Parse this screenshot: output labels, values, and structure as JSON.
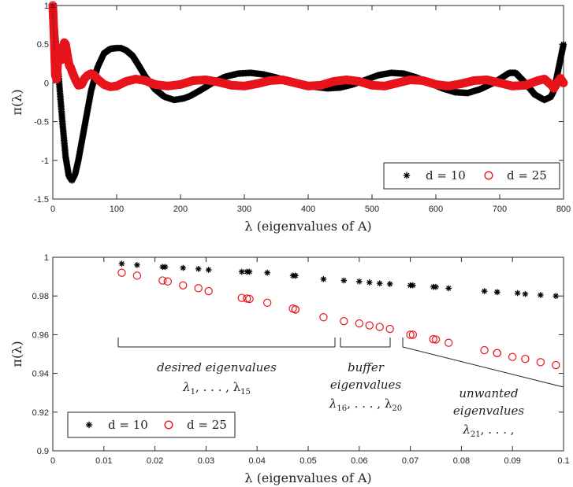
{
  "chart_data": [
    {
      "type": "line",
      "xlabel": "λ (eigenvalues of A)",
      "ylabel": "π(λ)",
      "xlim": [
        0,
        800
      ],
      "ylim": [
        -1.5,
        1
      ],
      "xticks": [
        "0",
        "100",
        "200",
        "300",
        "400",
        "500",
        "600",
        "700",
        "800"
      ],
      "yticks": [
        "-1.5",
        "-1",
        "-0.5",
        "0",
        "0.5",
        "1"
      ],
      "legend_position": "bottom-right",
      "series": [
        {
          "name": "d = 10",
          "marker": "asterisk",
          "color": "#000000",
          "x": [
            0,
            5,
            10,
            15,
            20,
            25,
            30,
            35,
            40,
            50,
            60,
            70,
            80,
            90,
            100,
            107,
            115,
            125,
            135,
            145,
            160,
            175,
            190,
            205,
            215,
            230,
            250,
            270,
            290,
            310,
            330,
            350,
            370,
            390,
            410,
            430,
            450,
            470,
            490,
            510,
            530,
            550,
            570,
            590,
            610,
            630,
            650,
            670,
            690,
            700,
            715,
            725,
            740,
            755,
            770,
            780,
            785,
            790,
            795,
            800
          ],
          "y": [
            1.0,
            0.5,
            0.0,
            -0.5,
            -0.95,
            -1.2,
            -1.26,
            -1.18,
            -1.0,
            -0.55,
            -0.1,
            0.2,
            0.38,
            0.44,
            0.45,
            0.45,
            0.42,
            0.35,
            0.22,
            0.08,
            -0.08,
            -0.18,
            -0.22,
            -0.2,
            -0.17,
            -0.1,
            0.0,
            0.08,
            0.12,
            0.13,
            0.11,
            0.07,
            0.02,
            -0.02,
            -0.05,
            -0.07,
            -0.06,
            -0.02,
            0.04,
            0.1,
            0.13,
            0.12,
            0.07,
            0.0,
            -0.07,
            -0.12,
            -0.13,
            -0.08,
            0.0,
            0.05,
            0.13,
            0.13,
            0.0,
            -0.15,
            -0.22,
            -0.18,
            -0.1,
            0.1,
            0.3,
            0.5
          ]
        },
        {
          "name": "d = 25",
          "marker": "circle",
          "color": "#e8141b",
          "x": [
            0,
            2,
            4,
            6,
            8,
            10,
            12,
            14,
            16,
            18,
            20,
            22,
            24,
            26,
            28,
            30,
            35,
            40,
            45,
            50,
            55,
            60,
            65,
            70,
            80,
            90,
            100,
            115,
            130,
            145,
            160,
            180,
            200,
            220,
            240,
            260,
            280,
            300,
            320,
            340,
            360,
            380,
            400,
            420,
            440,
            460,
            480,
            500,
            520,
            540,
            560,
            580,
            600,
            620,
            640,
            660,
            680,
            700,
            720,
            740,
            760,
            770,
            780,
            785,
            790,
            795,
            800
          ],
          "y": [
            1.0,
            0.6,
            0.1,
            0.05,
            0.3,
            0.45,
            0.4,
            0.3,
            0.45,
            0.52,
            0.5,
            0.4,
            0.3,
            0.22,
            0.2,
            0.15,
            0.05,
            -0.03,
            -0.02,
            0.06,
            0.1,
            0.12,
            0.1,
            0.05,
            -0.02,
            -0.05,
            -0.04,
            0.02,
            0.05,
            0.03,
            -0.02,
            -0.04,
            -0.02,
            0.03,
            0.04,
            0.01,
            -0.03,
            -0.04,
            -0.01,
            0.03,
            0.04,
            0.0,
            -0.04,
            -0.03,
            0.02,
            0.04,
            0.02,
            -0.03,
            -0.04,
            0.0,
            0.04,
            0.03,
            -0.02,
            -0.04,
            -0.01,
            0.03,
            0.04,
            0.0,
            -0.04,
            -0.03,
            0.03,
            0.05,
            -0.02,
            -0.07,
            0.0,
            0.06,
            0.0
          ]
        }
      ]
    },
    {
      "type": "scatter",
      "xlabel": "λ (eigenvalues of A)",
      "ylabel": "π(λ)",
      "xlim": [
        0,
        0.1
      ],
      "ylim": [
        0.9,
        1
      ],
      "xticks": [
        "0",
        "0.01",
        "0.02",
        "0.03",
        "0.04",
        "0.05",
        "0.06",
        "0.07",
        "0.08",
        "0.09",
        "0.1"
      ],
      "yticks": [
        "0.9",
        "0.92",
        "0.94",
        "0.96",
        "0.98",
        "1"
      ],
      "legend_position": "bottom-left",
      "series": [
        {
          "name": "d = 10",
          "marker": "asterisk",
          "color": "#000000",
          "x": [
            0.0135,
            0.0165,
            0.0215,
            0.022,
            0.0255,
            0.0285,
            0.0305,
            0.037,
            0.038,
            0.0385,
            0.042,
            0.047,
            0.0475,
            0.0475,
            0.053,
            0.057,
            0.06,
            0.062,
            0.064,
            0.066,
            0.07,
            0.0705,
            0.0745,
            0.075,
            0.0775,
            0.0845,
            0.087,
            0.087,
            0.091,
            0.0925,
            0.0955,
            0.0985
          ],
          "y": [
            0.9967,
            0.996,
            0.995,
            0.995,
            0.9945,
            0.994,
            0.9935,
            0.9925,
            0.9925,
            0.9925,
            0.992,
            0.9905,
            0.9905,
            0.9905,
            0.9887,
            0.988,
            0.9875,
            0.987,
            0.9865,
            0.9862,
            0.9855,
            0.9855,
            0.9847,
            0.9847,
            0.984,
            0.9825,
            0.982,
            0.982,
            0.9815,
            0.981,
            0.9805,
            0.98
          ]
        },
        {
          "name": "d = 25",
          "marker": "circle",
          "color": "#e8141b",
          "x": [
            0.0135,
            0.0165,
            0.0215,
            0.0225,
            0.0255,
            0.0285,
            0.0305,
            0.037,
            0.038,
            0.0385,
            0.042,
            0.047,
            0.0475,
            0.0475,
            0.053,
            0.057,
            0.06,
            0.062,
            0.064,
            0.066,
            0.07,
            0.0705,
            0.0745,
            0.075,
            0.0775,
            0.0845,
            0.087,
            0.087,
            0.09,
            0.0925,
            0.0955,
            0.0985
          ],
          "y": [
            0.992,
            0.9905,
            0.988,
            0.9875,
            0.9855,
            0.984,
            0.9825,
            0.979,
            0.9787,
            0.9785,
            0.9765,
            0.9735,
            0.973,
            0.973,
            0.969,
            0.967,
            0.9658,
            0.9648,
            0.964,
            0.963,
            0.96,
            0.96,
            0.9577,
            0.9575,
            0.9558,
            0.952,
            0.9505,
            0.9505,
            0.9485,
            0.9475,
            0.9458,
            0.9443
          ]
        }
      ],
      "annotations": {
        "desired": {
          "line1": "desired eigenvalues",
          "line2": "λ",
          "sub1": "1",
          "mid": ", . . . , λ",
          "sub2": "15"
        },
        "buffer": {
          "line1": "buffer",
          "line2": "eigenvalues",
          "line3": "λ",
          "sub1": "16",
          "mid": ", . . . , λ",
          "sub2": "20"
        },
        "unwanted": {
          "line1": "unwanted",
          "line2": "eigenvalues",
          "line3": "λ",
          "sub1": "21",
          "mid": ", . . . ,"
        }
      }
    }
  ],
  "legend": {
    "label_d10": "d = 10",
    "label_d25": "d = 25"
  }
}
